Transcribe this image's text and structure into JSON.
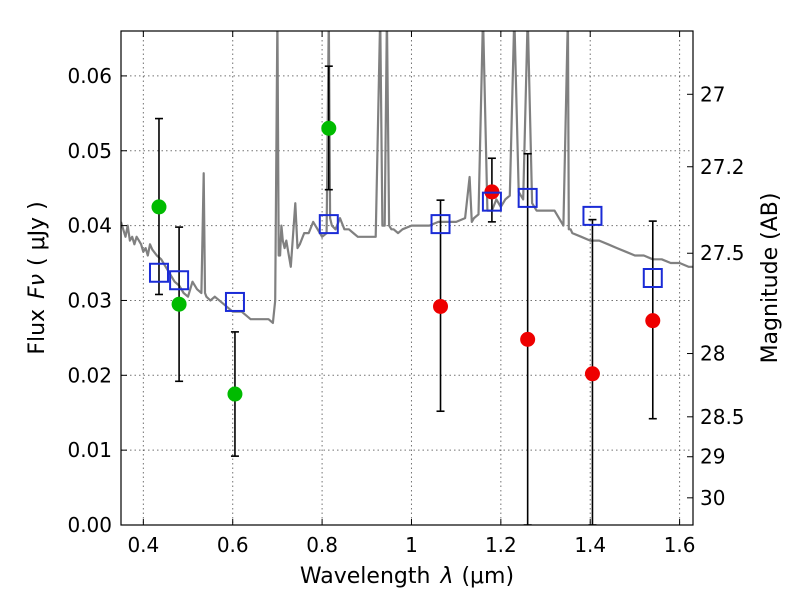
{
  "chart_data": {
    "type": "scatter",
    "title": "",
    "xlabel": "Wavelength",
    "xlabel_symbol": "λ",
    "xlabel_unit": "(μm)",
    "ylabel": "Flux",
    "ylabel_symbol": "Fν",
    "ylabel_unit": "( μJy )",
    "right_ylabel": "Magnitude (AB)",
    "xlim": [
      0.35,
      1.63
    ],
    "ylim": [
      0.0,
      0.066
    ],
    "grid": true,
    "x_ticks": [
      {
        "value": 0.4,
        "label": "0.4"
      },
      {
        "value": 0.6,
        "label": "0.6"
      },
      {
        "value": 0.8,
        "label": "0.8"
      },
      {
        "value": 1.0,
        "label": "1"
      },
      {
        "value": 1.2,
        "label": "1.2"
      },
      {
        "value": 1.4,
        "label": "1.4"
      },
      {
        "value": 1.6,
        "label": "1.6"
      }
    ],
    "y_ticks": [
      {
        "value": 0.0,
        "label": "0.00"
      },
      {
        "value": 0.01,
        "label": "0.01"
      },
      {
        "value": 0.02,
        "label": "0.02"
      },
      {
        "value": 0.03,
        "label": "0.03"
      },
      {
        "value": 0.04,
        "label": "0.04"
      },
      {
        "value": 0.05,
        "label": "0.05"
      },
      {
        "value": 0.06,
        "label": "0.06"
      }
    ],
    "right_ticks": [
      {
        "value": 27.0,
        "label": "27"
      },
      {
        "value": 27.2,
        "label": "27.2"
      },
      {
        "value": 27.5,
        "label": "27.5"
      },
      {
        "value": 28.0,
        "label": "28"
      },
      {
        "value": 28.5,
        "label": "28.5"
      },
      {
        "value": 29.0,
        "label": "29"
      },
      {
        "value": 30.0,
        "label": "30"
      }
    ],
    "series": [
      {
        "name": "Model spectrum",
        "kind": "line",
        "color": "#808080",
        "x": [
          0.35,
          0.355,
          0.36,
          0.365,
          0.37,
          0.375,
          0.38,
          0.385,
          0.39,
          0.395,
          0.4,
          0.405,
          0.41,
          0.415,
          0.42,
          0.43,
          0.44,
          0.45,
          0.46,
          0.47,
          0.48,
          0.49,
          0.5,
          0.51,
          0.52,
          0.53,
          0.535,
          0.538,
          0.541,
          0.55,
          0.56,
          0.58,
          0.6,
          0.62,
          0.64,
          0.66,
          0.68,
          0.69,
          0.695,
          0.7,
          0.703,
          0.706,
          0.709,
          0.712,
          0.716,
          0.72,
          0.73,
          0.74,
          0.745,
          0.75,
          0.76,
          0.77,
          0.78,
          0.8,
          0.81,
          0.815,
          0.818,
          0.822,
          0.83,
          0.84,
          0.85,
          0.86,
          0.87,
          0.88,
          0.9,
          0.92,
          0.93,
          0.935,
          0.94,
          0.945,
          0.95,
          0.955,
          0.96,
          0.97,
          0.98,
          1.0,
          1.02,
          1.04,
          1.06,
          1.08,
          1.1,
          1.12,
          1.13,
          1.135,
          1.14,
          1.15,
          1.16,
          1.17,
          1.18,
          1.19,
          1.2,
          1.21,
          1.22,
          1.23,
          1.24,
          1.25,
          1.26,
          1.27,
          1.28,
          1.29,
          1.3,
          1.32,
          1.34,
          1.35,
          1.352,
          1.356,
          1.36,
          1.38,
          1.4,
          1.42,
          1.44,
          1.46,
          1.48,
          1.5,
          1.52,
          1.54,
          1.56,
          1.58,
          1.6,
          1.62,
          1.63
        ],
        "y": [
          0.0405,
          0.0395,
          0.0385,
          0.04,
          0.038,
          0.0385,
          0.0375,
          0.0385,
          0.038,
          0.0375,
          0.0365,
          0.037,
          0.036,
          0.0375,
          0.0368,
          0.036,
          0.0355,
          0.0345,
          0.0335,
          0.0325,
          0.032,
          0.031,
          0.0305,
          0.0325,
          0.0315,
          0.031,
          0.047,
          0.031,
          0.0305,
          0.03,
          0.0305,
          0.0295,
          0.0285,
          0.0285,
          0.0275,
          0.0275,
          0.0275,
          0.027,
          0.03,
          0.068,
          0.036,
          0.036,
          0.04,
          0.038,
          0.037,
          0.038,
          0.0345,
          0.043,
          0.037,
          0.0375,
          0.039,
          0.039,
          0.0405,
          0.0385,
          0.039,
          0.068,
          0.041,
          0.04,
          0.0395,
          0.041,
          0.0395,
          0.0395,
          0.039,
          0.0385,
          0.0385,
          0.0385,
          0.068,
          0.04,
          0.04,
          0.068,
          0.04,
          0.0395,
          0.0395,
          0.039,
          0.0395,
          0.04,
          0.04,
          0.04,
          0.0405,
          0.0405,
          0.0405,
          0.041,
          0.0465,
          0.0405,
          0.041,
          0.0415,
          0.068,
          0.042,
          0.042,
          0.0435,
          0.0425,
          0.0435,
          0.044,
          0.068,
          0.0445,
          0.0435,
          0.068,
          0.043,
          0.042,
          0.042,
          0.042,
          0.042,
          0.04,
          0.068,
          0.0395,
          0.0395,
          0.039,
          0.0385,
          0.038,
          0.038,
          0.0375,
          0.037,
          0.0365,
          0.036,
          0.036,
          0.0355,
          0.0355,
          0.035,
          0.035,
          0.0345,
          0.0345
        ]
      },
      {
        "name": "Green points",
        "kind": "points",
        "color": "#00bb00",
        "x": [
          0.435,
          0.48,
          0.605,
          0.815
        ],
        "y": [
          0.0425,
          0.0295,
          0.0175,
          0.053
        ],
        "yerr_low": [
          0.0308,
          0.0192,
          0.0092,
          0.0448
        ],
        "yerr_high": [
          0.0543,
          0.0398,
          0.0258,
          0.0613
        ]
      },
      {
        "name": "Red points",
        "kind": "points",
        "color": "#ee0000",
        "x": [
          1.065,
          1.18,
          1.26,
          1.405,
          1.54
        ],
        "y": [
          0.0292,
          0.0445,
          0.0248,
          0.0202,
          0.0273
        ],
        "yerr_low": [
          0.0152,
          0.0405,
          0.0,
          0.0,
          0.0142
        ],
        "yerr_high": [
          0.0434,
          0.049,
          0.0496,
          0.0408,
          0.0406
        ]
      },
      {
        "name": "Blue squares",
        "kind": "squares",
        "color": "#1a2bd6",
        "x": [
          0.435,
          0.48,
          0.605,
          0.815,
          1.065,
          1.18,
          1.26,
          1.405,
          1.54
        ],
        "y": [
          0.0337,
          0.0327,
          0.0298,
          0.0402,
          0.0402,
          0.0432,
          0.0437,
          0.0413,
          0.033
        ]
      }
    ]
  }
}
